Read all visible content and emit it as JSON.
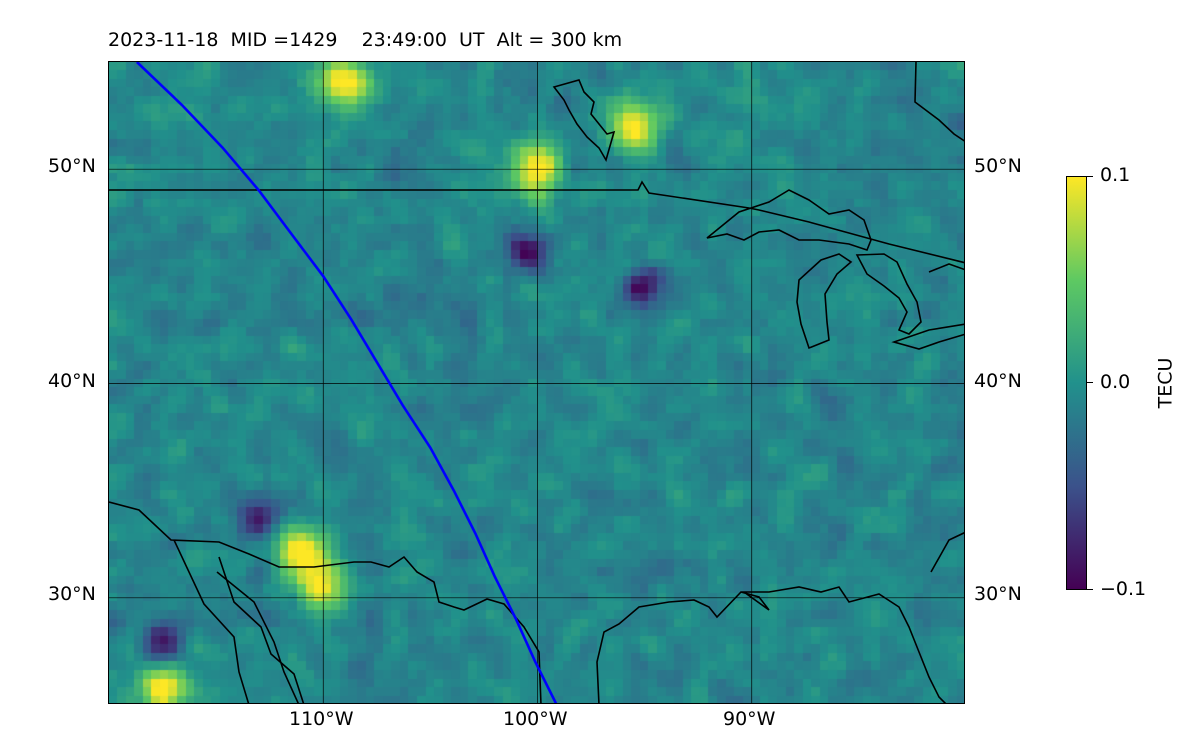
{
  "title": {
    "date": "2023-11-18",
    "mid_label": "MID =1429",
    "time": "23:49:00",
    "time_unit": "UT",
    "altitude": "Alt = 300 km",
    "text": "2023-11-18  MID =1429    23:49:00  UT  Alt = 300 km"
  },
  "map": {
    "lon_range": [
      -120,
      -80
    ],
    "lat_range": [
      25,
      55
    ],
    "lat_labels": [
      "30°N",
      "40°N",
      "50°N"
    ],
    "lon_labels": [
      "110°W",
      "100°W",
      "90°W"
    ],
    "grid_lons": [
      -110,
      -100,
      -90
    ],
    "grid_lats": [
      30,
      40,
      50
    ],
    "quantity": "differential TEC",
    "colormap": "viridis",
    "grid_color": "#000000",
    "coastline_color": "#000000",
    "track_color": "#0000ff",
    "satellite_track": [
      [
        -118.7,
        55
      ],
      [
        -116.6,
        53
      ],
      [
        -114.7,
        51
      ],
      [
        -113.0,
        49
      ],
      [
        -111.5,
        47
      ],
      [
        -110.0,
        45
      ],
      [
        -108.7,
        43
      ],
      [
        -107.5,
        41
      ],
      [
        -106.3,
        39
      ],
      [
        -105.0,
        37
      ],
      [
        -103.9,
        35
      ],
      [
        -102.9,
        33
      ],
      [
        -102.0,
        31
      ],
      [
        -101.0,
        29
      ],
      [
        -100.1,
        27
      ],
      [
        -99.1,
        25
      ]
    ],
    "features": {
      "bright_anomalies": [
        [
          -117.5,
          25.8
        ],
        [
          -111.0,
          32.2
        ],
        [
          -110.0,
          30.4
        ],
        [
          -109.0,
          54.0
        ],
        [
          -100.0,
          50.0
        ],
        [
          -95.5,
          52.0
        ]
      ],
      "dark_anomalies": [
        [
          -117.5,
          27.8
        ],
        [
          -113.0,
          33.8
        ],
        [
          -100.5,
          46.2
        ],
        [
          -95.0,
          44.5
        ]
      ]
    }
  },
  "colorbar": {
    "label": "TECU",
    "min": -0.1,
    "max": 0.1,
    "tick_labels": [
      "0.1",
      "0.0",
      "−0.1"
    ],
    "colors": [
      "#440154",
      "#3b528b",
      "#21918c",
      "#5ec962",
      "#fde725"
    ]
  }
}
